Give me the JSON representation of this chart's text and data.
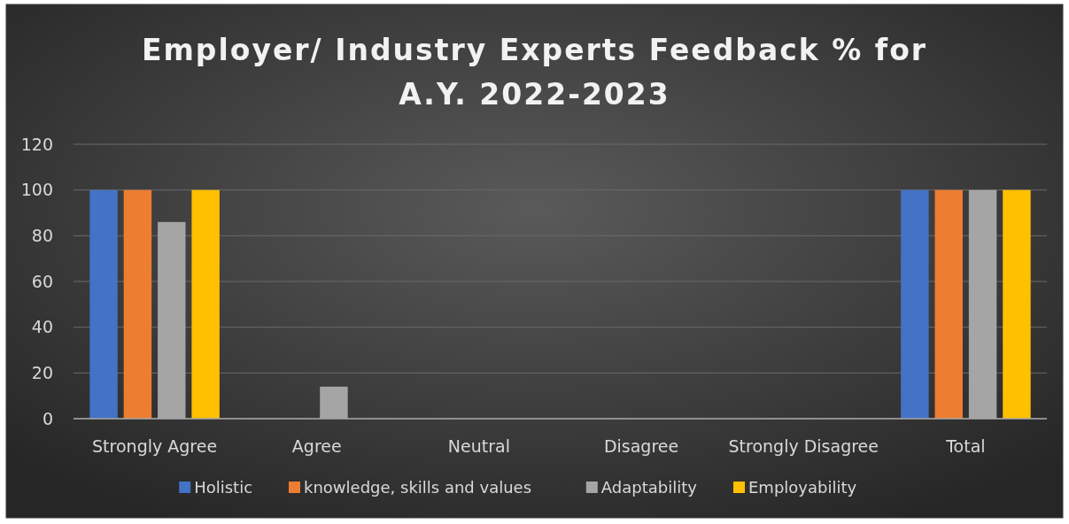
{
  "chart_data": {
    "type": "bar",
    "title": "Employer/ Industry Experts Feedback % for A.Y. 2022-2023",
    "categories": [
      "Strongly Agree",
      "Agree",
      "Neutral",
      "Disagree",
      "Strongly Disagree",
      "Total"
    ],
    "series": [
      {
        "name": "Holistic",
        "color": "#4472c4",
        "values": [
          100,
          0,
          0,
          0,
          0,
          100
        ]
      },
      {
        "name": "knowledge, skills and values",
        "color": "#ed7d31",
        "values": [
          100,
          0,
          0,
          0,
          0,
          100
        ]
      },
      {
        "name": "Adaptability",
        "color": "#a5a5a5",
        "values": [
          86,
          14,
          0,
          0,
          0,
          100
        ]
      },
      {
        "name": "Employability",
        "color": "#ffc000",
        "values": [
          100,
          0,
          0,
          0,
          0,
          100
        ]
      }
    ],
    "ylim": [
      0,
      120
    ],
    "yticks": [
      0,
      20,
      40,
      60,
      80,
      100,
      120
    ],
    "grid": "y",
    "legend": "bottom"
  }
}
